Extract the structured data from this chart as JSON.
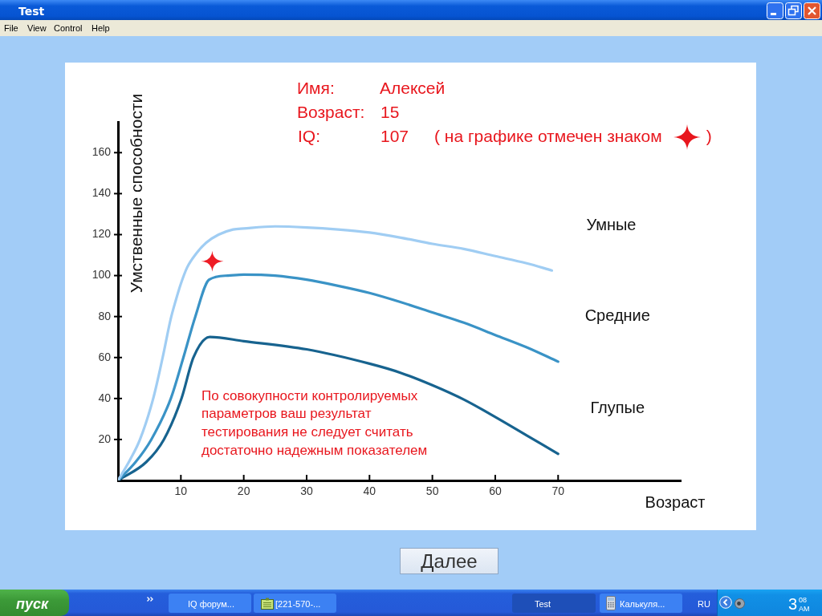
{
  "chart_data": {
    "type": "line",
    "xlabel": "Возраст",
    "ylabel": "Умственные способности",
    "xlim": [
      0,
      89.5
    ],
    "ylim": [
      0,
      175
    ],
    "xticks": [
      10,
      20,
      30,
      40,
      50,
      60,
      70
    ],
    "yticks": [
      20,
      40,
      60,
      80,
      100,
      120,
      140,
      160
    ],
    "series": [
      {
        "name": "Умные",
        "color": "#a0cdf3",
        "x": [
          0,
          1.9,
          3.5,
          5.6,
          7.1,
          8.4,
          9.2,
          10,
          11,
          12.5,
          14,
          16,
          18.3,
          20,
          25,
          30,
          35,
          40,
          45,
          50,
          55,
          60,
          65,
          69
        ],
        "values": [
          0,
          10,
          20,
          40,
          60,
          79,
          88,
          96,
          104,
          111,
          116,
          120,
          122.5,
          123,
          124,
          123.5,
          122.5,
          121,
          118.5,
          115.5,
          113,
          109.5,
          106,
          102.5
        ]
      },
      {
        "name": "Средние",
        "color": "#3a93c6",
        "x": [
          0,
          2.8,
          5.3,
          8.4,
          10.4,
          12.3,
          14.5,
          17.5,
          20,
          25,
          30,
          35,
          40,
          45,
          50,
          55,
          60,
          65,
          70
        ],
        "values": [
          0,
          9,
          20,
          40,
          60,
          80,
          98,
          100,
          100.5,
          100,
          98,
          95,
          91.5,
          87,
          82,
          77,
          71,
          65,
          58
        ]
      },
      {
        "name": "Глупые",
        "color": "#17638f",
        "x": [
          0,
          4.5,
          7.3,
          10.1,
          12,
          14.6,
          20,
          30,
          40,
          45,
          50,
          55,
          60,
          65,
          70
        ],
        "values": [
          0,
          9,
          20,
          40,
          60,
          70,
          68,
          64,
          57,
          52.5,
          46.5,
          39.5,
          31,
          22,
          13
        ]
      },
      {
        "type": "scatter",
        "color": "#ee1c25",
        "marker": "star",
        "x": [
          15
        ],
        "values": [
          107
        ]
      }
    ],
    "annotations": [
      "Имя:",
      "Алексей",
      "Возраст:",
      "15",
      "IQ:",
      "107",
      "( на графике отмечен знаком",
      ")",
      "По совокупности контролируемых параметров ваш результат тестирования не следует считать достаточно надежным показателем",
      "Test",
      "File",
      "View",
      "Control",
      "Help",
      "Далее",
      "пуск",
      "IQ форум...",
      "[221-570-...",
      "Test",
      "Калькуля...",
      "RU",
      "3",
      "08",
      "AM"
    ]
  }
}
